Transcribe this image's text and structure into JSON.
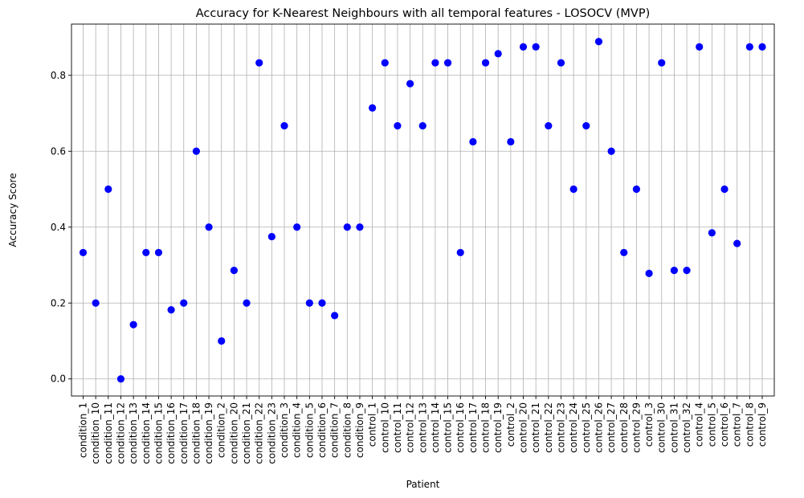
{
  "chart_data": {
    "type": "scatter",
    "title": "Accuracy for K-Nearest Neighbours with all temporal features - LOSOCV (MVP)",
    "xlabel": "Patient",
    "ylabel": "Accuracy Score",
    "ylim": [
      -0.045,
      0.935
    ],
    "yticks": [
      0.0,
      0.2,
      0.4,
      0.6,
      0.8
    ],
    "ytick_labels": [
      "0.0",
      "0.2",
      "0.4",
      "0.6",
      "0.8"
    ],
    "grid": true,
    "color": "#0000ff",
    "categories": [
      "condition_1",
      "condition_10",
      "condition_11",
      "condition_12",
      "condition_13",
      "condition_14",
      "condition_15",
      "condition_16",
      "condition_17",
      "condition_18",
      "condition_19",
      "condition_2",
      "condition_20",
      "condition_21",
      "condition_22",
      "condition_23",
      "condition_3",
      "condition_4",
      "condition_5",
      "condition_6",
      "condition_7",
      "condition_8",
      "condition_9",
      "control_1",
      "control_10",
      "control_11",
      "control_12",
      "control_13",
      "control_14",
      "control_15",
      "control_16",
      "control_17",
      "control_18",
      "control_19",
      "control_2",
      "control_20",
      "control_21",
      "control_22",
      "control_23",
      "control_24",
      "control_25",
      "control_26",
      "control_27",
      "control_28",
      "control_29",
      "control_3",
      "control_30",
      "control_31",
      "control_32",
      "control_4",
      "control_5",
      "control_6",
      "control_7",
      "control_8",
      "control_9"
    ],
    "values": [
      0.333,
      0.2,
      0.5,
      0.0,
      0.143,
      0.333,
      0.333,
      0.182,
      0.2,
      0.6,
      0.4,
      0.1,
      0.286,
      0.2,
      0.833,
      0.375,
      0.667,
      0.4,
      0.2,
      0.2,
      0.167,
      0.4,
      0.4,
      0.714,
      0.833,
      0.667,
      0.778,
      0.667,
      0.833,
      0.833,
      0.333,
      0.625,
      0.833,
      0.857,
      0.625,
      0.875,
      0.875,
      0.667,
      0.833,
      0.5,
      0.667,
      0.889,
      0.6,
      0.333,
      0.5,
      0.278,
      0.833,
      0.286,
      0.286,
      0.875,
      0.385,
      0.5,
      0.357,
      0.875,
      0.875
    ]
  }
}
